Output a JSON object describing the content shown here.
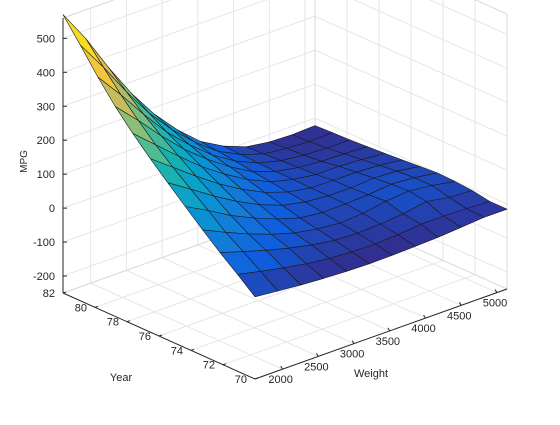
{
  "chart_data": {
    "type": "surface",
    "xlabel": "Weight",
    "ylabel": "Year",
    "zlabel": "MPG",
    "x_ticks": [
      2000,
      2500,
      3000,
      3500,
      4000,
      4500,
      5000
    ],
    "y_ticks": [
      70,
      72,
      74,
      76,
      78,
      80,
      82
    ],
    "z_ticks": [
      -200,
      -100,
      0,
      100,
      200,
      300,
      400,
      500
    ],
    "xlim": [
      1613,
      5140
    ],
    "ylim": [
      70,
      82
    ],
    "zlim": [
      -250,
      560
    ],
    "grid": true,
    "colormap": "parula",
    "x": [
      1613,
      1934,
      2254,
      2575,
      2895,
      3216,
      3536,
      3857,
      4177,
      4498,
      4818,
      5140
    ],
    "y": [
      70,
      71.09,
      72.18,
      73.27,
      74.36,
      75.45,
      76.55,
      77.64,
      78.73,
      79.82,
      80.91,
      82
    ],
    "z": [
      [
        -8,
        -15,
        -21,
        -26,
        -29,
        -31,
        -30,
        -28,
        -25,
        -20,
        -15,
        -15
      ],
      [
        35,
        20,
        6,
        -6,
        -14,
        -19,
        -20,
        -17,
        -10,
        -10,
        -12,
        -15
      ],
      [
        76,
        55,
        35,
        17,
        2,
        -8,
        -11,
        -8,
        -2,
        10,
        -2,
        -6
      ],
      [
        120,
        89,
        60,
        35,
        15,
        2,
        -4,
        0,
        12,
        18,
        10,
        -2
      ],
      [
        166,
        130,
        91,
        60,
        33,
        12,
        4,
        5,
        8,
        15,
        10,
        0
      ],
      [
        213,
        170,
        126,
        86,
        52,
        26,
        12,
        6,
        5,
        10,
        6,
        -4
      ],
      [
        261,
        211,
        161,
        114,
        74,
        41,
        18,
        6,
        4,
        4,
        0,
        -8
      ],
      [
        312,
        254,
        197,
        142,
        96,
        56,
        25,
        8,
        -2,
        -2,
        -6,
        -12
      ],
      [
        368,
        303,
        234,
        170,
        117,
        70,
        32,
        8,
        -4,
        -10,
        -12,
        -15
      ],
      [
        432,
        356,
        274,
        198,
        136,
        82,
        40,
        10,
        -7,
        -15,
        -18,
        -18
      ],
      [
        503,
        414,
        318,
        230,
        158,
        96,
        46,
        12,
        -10,
        -18,
        -22,
        -20
      ],
      [
        570,
        475,
        365,
        265,
        180,
        110,
        52,
        14,
        -12,
        -22,
        -25,
        -22
      ]
    ]
  }
}
